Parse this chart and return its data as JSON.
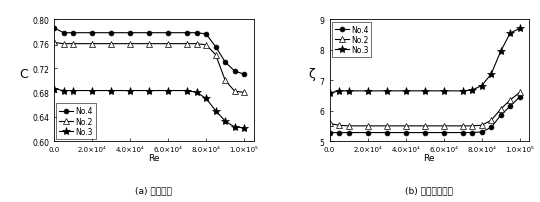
{
  "left_caption": "(a) 流出系数",
  "right_caption": "(b) 压力损失系数",
  "left_ylabel": "C",
  "right_ylabel": "ζ",
  "xlabel": "Re",
  "legend_labels": [
    "No.4",
    "No.2",
    "No.3"
  ],
  "Re_left": [
    0,
    5000,
    10000,
    20000,
    30000,
    40000,
    50000,
    60000,
    70000,
    75000,
    80000,
    85000,
    90000,
    95000,
    100000
  ],
  "C_No4": [
    0.786,
    0.778,
    0.778,
    0.778,
    0.778,
    0.778,
    0.778,
    0.778,
    0.778,
    0.778,
    0.776,
    0.755,
    0.73,
    0.715,
    0.71
  ],
  "C_No2": [
    0.762,
    0.76,
    0.76,
    0.76,
    0.76,
    0.76,
    0.76,
    0.76,
    0.76,
    0.76,
    0.758,
    0.742,
    0.7,
    0.682,
    0.68
  ],
  "C_No3": [
    0.686,
    0.683,
    0.683,
    0.683,
    0.683,
    0.683,
    0.683,
    0.683,
    0.683,
    0.68,
    0.67,
    0.65,
    0.633,
    0.623,
    0.622
  ],
  "Re_right": [
    0,
    5000,
    10000,
    20000,
    30000,
    40000,
    50000,
    60000,
    70000,
    75000,
    80000,
    85000,
    90000,
    95000,
    100000
  ],
  "Z_No4": [
    5.28,
    5.28,
    5.28,
    5.28,
    5.28,
    5.28,
    5.28,
    5.28,
    5.28,
    5.28,
    5.3,
    5.45,
    5.85,
    6.15,
    6.45
  ],
  "Z_No2": [
    5.58,
    5.52,
    5.5,
    5.5,
    5.5,
    5.5,
    5.5,
    5.5,
    5.5,
    5.5,
    5.52,
    5.68,
    6.05,
    6.35,
    6.6
  ],
  "Z_No3": [
    6.58,
    6.65,
    6.65,
    6.65,
    6.65,
    6.65,
    6.65,
    6.65,
    6.65,
    6.68,
    6.82,
    7.2,
    7.95,
    8.55,
    8.7
  ],
  "left_ylim": [
    0.6,
    0.8
  ],
  "right_ylim": [
    5.0,
    9.0
  ],
  "left_yticks": [
    0.6,
    0.64,
    0.68,
    0.72,
    0.76,
    0.8
  ],
  "right_yticks": [
    5.0,
    6.0,
    7.0,
    8.0,
    9.0
  ],
  "xticks": [
    0.0,
    20000,
    40000,
    60000,
    80000,
    100000
  ],
  "xtick_labels": [
    "0.0",
    "2.0×10⁴",
    "4.0×10⁴",
    "6.0×10⁴",
    "8.0×10⁴",
    "1.0×10⁵"
  ],
  "marker_No4": "o",
  "marker_No2": "^",
  "marker_No3": "*",
  "line_color": "black",
  "ms_circle": 3.5,
  "ms_tri": 4.5,
  "ms_star": 6,
  "lw": 0.8
}
